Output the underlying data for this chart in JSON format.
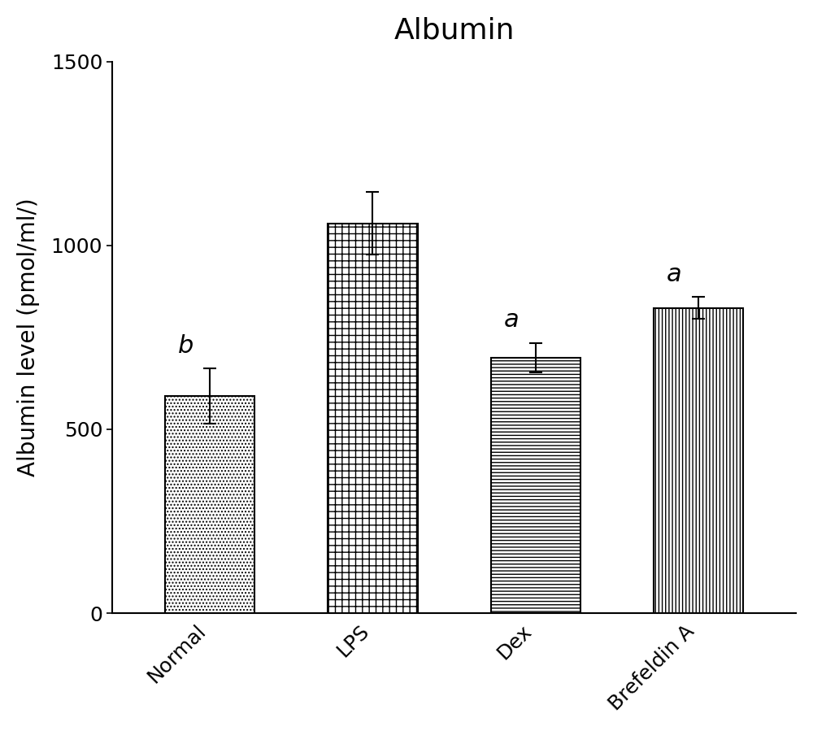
{
  "title": "Albumin",
  "ylabel": "Albumin level (pmol/ml/)",
  "categories": [
    "Normal",
    "LPS",
    "Dex",
    "Brefeldin A"
  ],
  "values": [
    590,
    1060,
    695,
    830
  ],
  "errors": [
    75,
    85,
    40,
    30
  ],
  "ylim": [
    0,
    1500
  ],
  "yticks": [
    0,
    500,
    1000,
    1500
  ],
  "labels": [
    "b",
    null,
    "a",
    "a"
  ],
  "hatch_patterns": [
    "...",
    "xx",
    "---",
    "|||"
  ],
  "bar_facecolor": [
    "white",
    "white",
    "white",
    "white"
  ],
  "bar_edgecolor": [
    "black",
    "black",
    "black",
    "black"
  ],
  "title_fontsize": 26,
  "axis_label_fontsize": 20,
  "tick_fontsize": 18,
  "annotation_fontsize": 22,
  "bar_width": 0.55,
  "background_color": "#ffffff"
}
